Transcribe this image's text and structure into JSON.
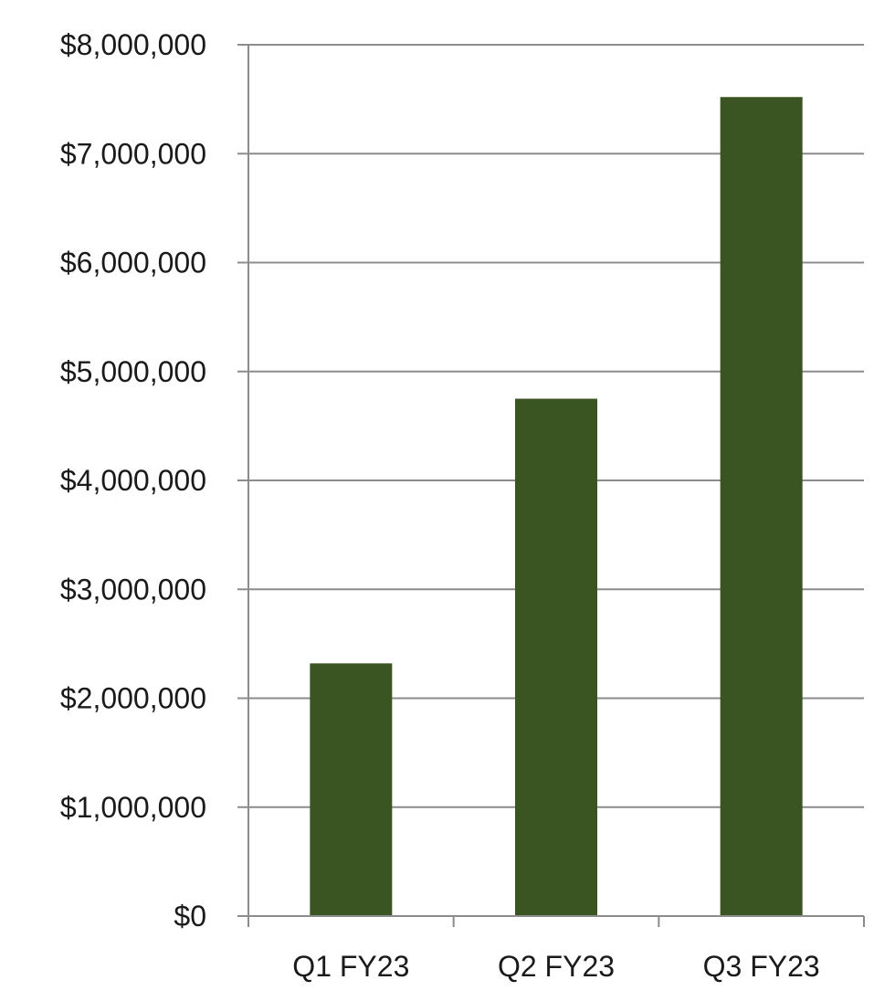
{
  "chart_data": {
    "type": "bar",
    "title": "",
    "xlabel": "",
    "ylabel": "",
    "categories": [
      "Q1 FY23",
      "Q2 FY23",
      "Q3 FY23"
    ],
    "values": [
      2320000,
      4750000,
      7520000
    ],
    "ylim": [
      0,
      8000000
    ],
    "yticks": [
      0,
      1000000,
      2000000,
      3000000,
      4000000,
      5000000,
      6000000,
      7000000,
      8000000
    ],
    "ytick_labels": [
      "$0",
      "$1,000,000",
      "$2,000,000",
      "$3,000,000",
      "$4,000,000",
      "$5,000,000",
      "$6,000,000",
      "$7,000,000",
      "$8,000,000"
    ],
    "grid": true,
    "legend": "none",
    "colors": {
      "bar": "#3a5522",
      "grid": "#8c8c8c",
      "axis": "#8c8c8c",
      "text": "#1a1a1a"
    }
  }
}
